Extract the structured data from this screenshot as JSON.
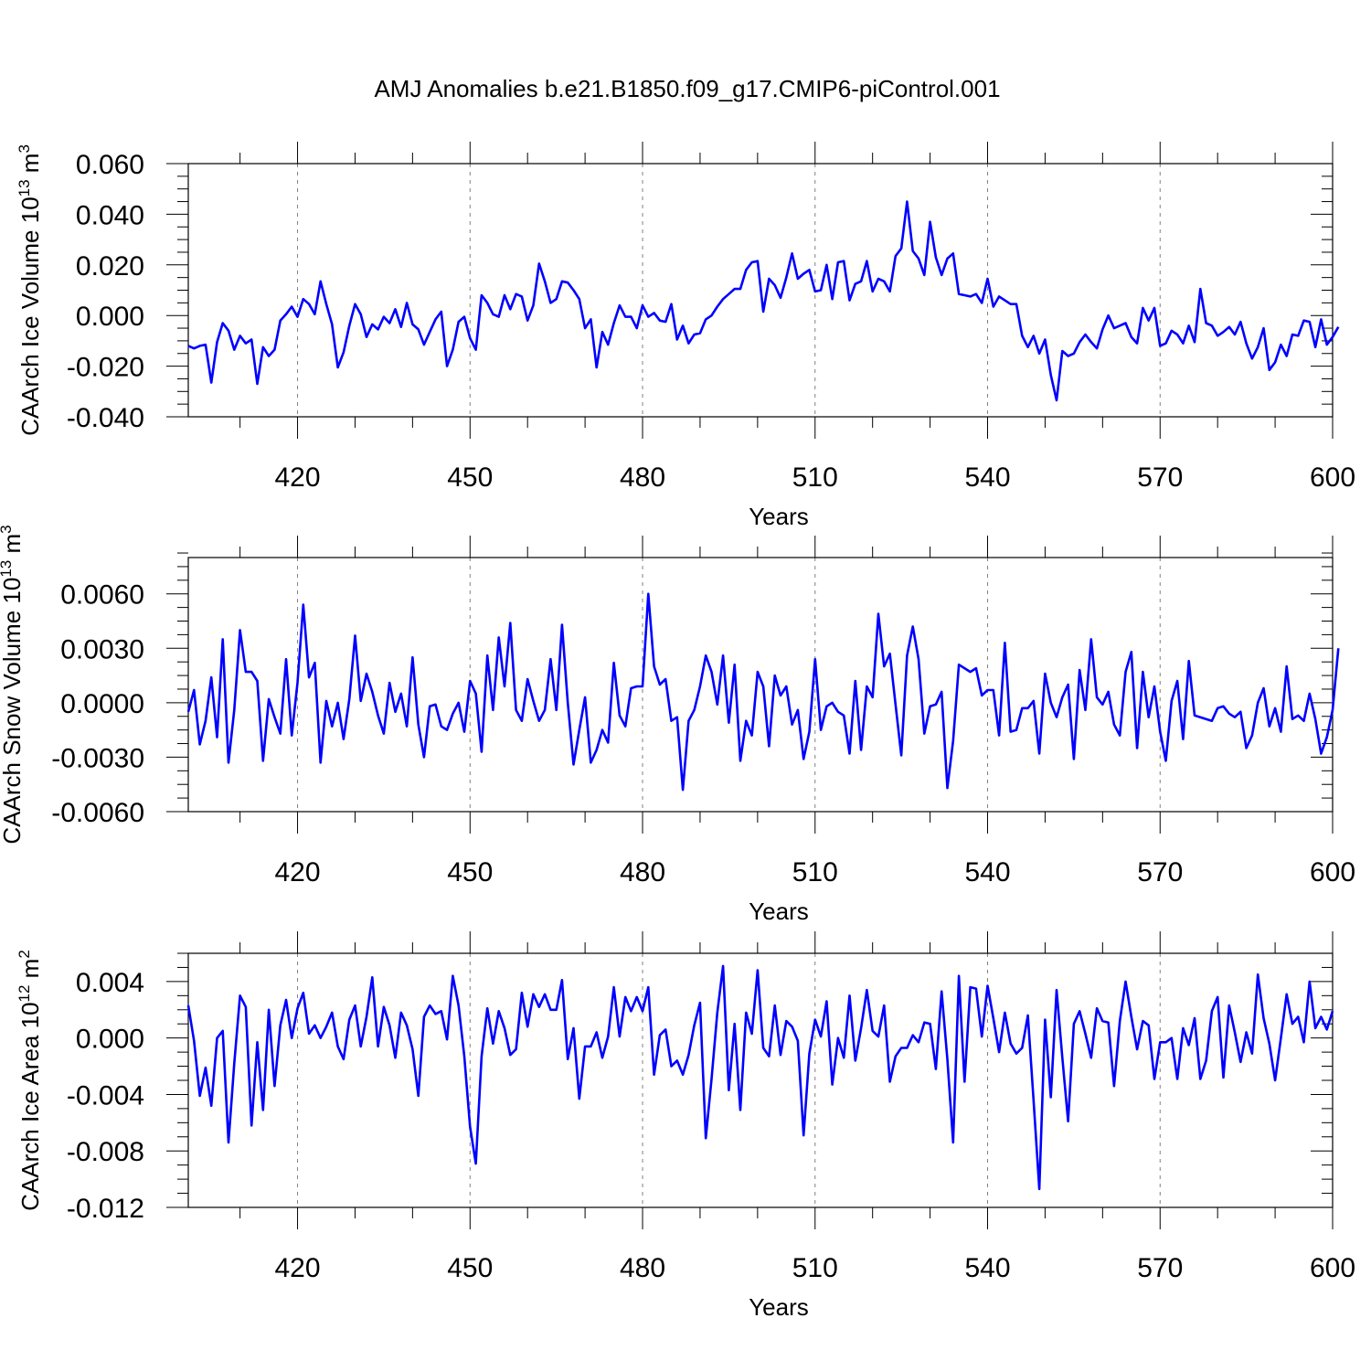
{
  "title": "AMJ Anomalies b.e21.B1850.f09_g17.CMIP6-piControl.001",
  "line_color": "#0000ff",
  "chart_data": [
    {
      "type": "line",
      "ylabel_main": "CAArch Ice Volume 10",
      "ylabel_exp": "13",
      "ylabel_unit": " m",
      "ylabel_unit_exp": "3",
      "xlabel": "Years",
      "xlim": [
        401,
        600
      ],
      "ylim": [
        -0.04,
        0.06
      ],
      "xticks": [
        420,
        450,
        480,
        510,
        540,
        570,
        600
      ],
      "yticks": [
        -0.04,
        -0.02,
        0.0,
        0.02,
        0.04,
        0.06
      ],
      "ytick_labels": [
        "-0.040",
        "-0.020",
        "0.000",
        "0.020",
        "0.040",
        "0.060"
      ],
      "grid": "vertical dashed at major x ticks",
      "series": [
        {
          "x_start": 401,
          "values": [
            -0.012,
            -0.013,
            -0.012,
            -0.0115,
            -0.0265,
            -0.0105,
            -0.003,
            -0.006,
            -0.0135,
            -0.008,
            -0.011,
            -0.0095,
            -0.027,
            -0.0125,
            -0.016,
            -0.0135,
            -0.002,
            0.0005,
            0.0035,
            -0.0005,
            0.0065,
            0.0045,
            0.0005,
            0.0135,
            0.0045,
            -0.0035,
            -0.0205,
            -0.0145,
            -0.004,
            0.0045,
            0.0005,
            -0.0085,
            -0.0035,
            -0.0055,
            -0.0005,
            -0.003,
            0.0025,
            -0.0045,
            0.005,
            -0.0035,
            -0.0055,
            -0.0115,
            -0.0065,
            -0.0015,
            0.0015,
            -0.02,
            -0.0135,
            -0.0025,
            -0.0005,
            -0.009,
            -0.0135,
            0.008,
            0.005,
            0.0005,
            -0.0005,
            0.008,
            0.0025,
            0.0085,
            0.0075,
            -0.002,
            0.004,
            0.0205,
            0.0135,
            0.005,
            0.0065,
            0.0135,
            0.013,
            0.01,
            0.0065,
            -0.005,
            -0.0015,
            -0.0205,
            -0.0065,
            -0.0115,
            -0.003,
            0.004,
            -0.0005,
            -0.0005,
            -0.005,
            0.004,
            -0.0005,
            0.001,
            -0.002,
            -0.0025,
            0.0045,
            -0.0095,
            -0.004,
            -0.011,
            -0.0075,
            -0.007,
            -0.0015,
            0.0,
            0.0035,
            0.0065,
            0.0085,
            0.0105,
            0.0105,
            0.018,
            0.021,
            0.0215,
            0.0015,
            0.0145,
            0.012,
            0.007,
            0.015,
            0.0245,
            0.0145,
            0.0165,
            0.018,
            0.0095,
            0.01,
            0.02,
            0.0065,
            0.021,
            0.0215,
            0.006,
            0.0125,
            0.0135,
            0.0215,
            0.0095,
            0.0145,
            0.0135,
            0.0095,
            0.0235,
            0.0265,
            0.045,
            0.0255,
            0.0225,
            0.016,
            0.037,
            0.023,
            0.016,
            0.0225,
            0.0245,
            0.0085,
            0.008,
            0.0075,
            0.0085,
            0.005,
            0.0145,
            0.0035,
            0.0075,
            0.006,
            0.0045,
            0.0045,
            -0.008,
            -0.0125,
            -0.008,
            -0.015,
            -0.0095,
            -0.0235,
            -0.0335,
            -0.014,
            -0.016,
            -0.015,
            -0.0105,
            -0.0075,
            -0.0105,
            -0.013,
            -0.0055,
            0.0,
            -0.005,
            -0.004,
            -0.003,
            -0.0085,
            -0.011,
            0.003,
            -0.002,
            0.003,
            -0.012,
            -0.011,
            -0.006,
            -0.0075,
            -0.011,
            -0.004,
            -0.0105,
            0.0105,
            -0.003,
            -0.004,
            -0.008,
            -0.0065,
            -0.0045,
            -0.0075,
            -0.0025,
            -0.011,
            -0.017,
            -0.0125,
            -0.005,
            -0.0215,
            -0.0185,
            -0.0115,
            -0.016,
            -0.0075,
            -0.008,
            -0.002,
            -0.0025,
            -0.0125,
            -0.0015,
            -0.0115,
            -0.0085,
            -0.0045
          ]
        }
      ]
    },
    {
      "type": "line",
      "ylabel_main": "CAArch Snow Volume 10",
      "ylabel_exp": "13",
      "ylabel_unit": " m",
      "ylabel_unit_exp": "3",
      "xlabel": "Years",
      "xlim": [
        401,
        600
      ],
      "ylim": [
        -0.006,
        0.008
      ],
      "xticks": [
        420,
        450,
        480,
        510,
        540,
        570,
        600
      ],
      "yticks": [
        -0.006,
        -0.003,
        0.0,
        0.003,
        0.006
      ],
      "ytick_labels": [
        "-0.0060",
        "-0.0030",
        "0.0000",
        "0.0030",
        "0.0060"
      ],
      "grid": "vertical dashed at major x ticks",
      "series": [
        {
          "x_start": 401,
          "values": [
            -0.0005,
            0.0007,
            -0.0023,
            -0.001,
            0.0014,
            -0.0019,
            0.0035,
            -0.0033,
            -0.0004,
            0.004,
            0.0017,
            0.0017,
            0.0012,
            -0.0032,
            0.0002,
            -0.0008,
            -0.0017,
            0.0024,
            -0.0018,
            0.0011,
            0.0054,
            0.0014,
            0.0022,
            -0.0033,
            0.0001,
            -0.0013,
            0.0,
            -0.002,
            0.0002,
            0.0037,
            0.0001,
            0.0016,
            0.0006,
            -0.0007,
            -0.0017,
            0.0011,
            -0.0005,
            0.0005,
            -0.0013,
            0.0025,
            -0.0012,
            -0.003,
            -0.0002,
            -0.0001,
            -0.0013,
            -0.0015,
            -0.0006,
            0.0,
            -0.0016,
            0.0012,
            0.0005,
            -0.0027,
            0.0026,
            -0.0004,
            0.0036,
            0.0009,
            0.0044,
            -0.0004,
            -0.001,
            0.0013,
            0.0001,
            -0.001,
            -0.0004,
            0.0024,
            -0.0004,
            0.0043,
            0.0,
            -0.0034,
            -0.0015,
            0.0003,
            -0.0033,
            -0.0026,
            -0.0015,
            -0.0022,
            0.0022,
            -0.0007,
            -0.0013,
            0.0008,
            0.0009,
            0.0009,
            0.006,
            0.002,
            0.001,
            0.0013,
            -0.001,
            -0.0008,
            -0.0048,
            -0.001,
            -0.0004,
            0.0009,
            0.0026,
            0.0017,
            -0.0001,
            0.0026,
            -0.0011,
            0.0021,
            -0.0032,
            -0.001,
            -0.0018,
            0.0017,
            0.0009,
            -0.0024,
            0.0015,
            0.0004,
            0.0009,
            -0.0012,
            -0.0004,
            -0.0031,
            -0.0016,
            0.0024,
            -0.0015,
            -0.0002,
            0.0,
            -0.0005,
            -0.0007,
            -0.0028,
            0.0012,
            -0.0026,
            0.0009,
            0.0003,
            0.0049,
            0.002,
            0.0027,
            -0.0001,
            -0.0029,
            0.0026,
            0.0042,
            0.0024,
            -0.0017,
            -0.0002,
            -0.0001,
            0.0006,
            -0.0047,
            -0.0021,
            0.0021,
            0.0019,
            0.0017,
            0.0019,
            0.0004,
            0.0007,
            0.0007,
            -0.0018,
            0.0033,
            -0.0016,
            -0.0015,
            -0.0003,
            -0.0003,
            0.0001,
            -0.0028,
            0.0016,
            0.0,
            -0.0008,
            0.0003,
            0.001,
            -0.0031,
            0.0018,
            -0.0004,
            0.0035,
            0.0003,
            -0.0001,
            0.0006,
            -0.0012,
            -0.0018,
            0.0017,
            0.0028,
            -0.0025,
            0.0017,
            -0.0008,
            0.0009,
            -0.0016,
            -0.0032,
            0.0001,
            0.0012,
            -0.002,
            0.0023,
            -0.0007,
            -0.0008,
            -0.0009,
            -0.001,
            -0.0003,
            -0.0002,
            -0.0006,
            -0.0008,
            -0.0005,
            -0.0025,
            -0.0018,
            0.0,
            0.0008,
            -0.0013,
            -0.0003,
            -0.0016,
            0.002,
            -0.0009,
            -0.0007,
            -0.001,
            0.0005,
            -0.0009,
            -0.0028,
            -0.0019,
            -0.0004,
            0.003
          ]
        }
      ]
    },
    {
      "type": "line",
      "ylabel_main": "CAArch Ice Area 10",
      "ylabel_exp": "12",
      "ylabel_unit": " m",
      "ylabel_unit_exp": "2",
      "xlabel": "Years",
      "xlim": [
        401,
        600
      ],
      "ylim": [
        -0.012,
        0.006
      ],
      "xticks": [
        420,
        450,
        480,
        510,
        540,
        570,
        600
      ],
      "yticks": [
        -0.012,
        -0.008,
        -0.004,
        0.0,
        0.004
      ],
      "ytick_labels": [
        "-0.012",
        "-0.008",
        "-0.004",
        "0.000",
        "0.004"
      ],
      "grid": "vertical dashed at major x ticks",
      "series": [
        {
          "x_start": 401,
          "values": [
            0.0023,
            -0.0002,
            -0.0041,
            -0.0021,
            -0.0048,
            0.0,
            0.0005,
            -0.0074,
            -0.0018,
            0.003,
            0.0022,
            -0.0062,
            -0.0003,
            -0.0051,
            0.002,
            -0.0034,
            0.0009,
            0.0027,
            0.0,
            0.0021,
            0.0032,
            0.0003,
            0.0009,
            0.0,
            0.0008,
            0.0018,
            -0.0006,
            -0.0015,
            0.0013,
            0.0023,
            -0.0006,
            0.0015,
            0.0043,
            -0.0006,
            0.0022,
            0.0009,
            -0.0014,
            0.0018,
            0.0009,
            -0.0008,
            -0.0041,
            0.0015,
            0.0023,
            0.0017,
            0.0019,
            -0.0001,
            0.0044,
            0.0023,
            -0.0013,
            -0.0063,
            -0.0089,
            -0.0013,
            0.0021,
            -0.0004,
            0.0019,
            0.0007,
            -0.0012,
            -0.0008,
            0.0032,
            0.0008,
            0.0031,
            0.0022,
            0.0031,
            0.002,
            0.002,
            0.0041,
            -0.0015,
            0.0007,
            -0.0043,
            -0.0006,
            -0.0006,
            0.0004,
            -0.0014,
            0.0001,
            0.0036,
            0.0001,
            0.0029,
            0.0019,
            0.0029,
            0.0019,
            0.0036,
            -0.0026,
            0.0002,
            0.0006,
            -0.002,
            -0.0016,
            -0.0026,
            -0.0012,
            0.0009,
            0.0025,
            -0.0071,
            -0.0029,
            0.0018,
            0.0051,
            -0.0037,
            0.001,
            -0.0051,
            0.0018,
            0.0003,
            0.0048,
            -0.0007,
            -0.0013,
            0.0023,
            -0.0012,
            0.0012,
            0.0008,
            -0.0002,
            -0.0069,
            -0.0011,
            0.0013,
            0.0001,
            0.0026,
            -0.0033,
            0.0,
            -0.0014,
            0.003,
            -0.0016,
            0.0007,
            0.0034,
            0.0005,
            0.0001,
            0.0023,
            -0.0031,
            -0.0013,
            -0.0007,
            -0.0007,
            0.0002,
            -0.0003,
            0.0011,
            0.001,
            -0.0022,
            0.0033,
            -0.0015,
            -0.0074,
            0.0044,
            -0.0031,
            0.0036,
            0.0035,
            0.0001,
            0.0037,
            0.0014,
            -0.001,
            0.0018,
            -0.0004,
            -0.0011,
            -0.0007,
            0.0016,
            -0.0044,
            -0.0107,
            0.0013,
            -0.0042,
            0.0034,
            -0.0014,
            -0.0059,
            0.001,
            0.0019,
            0.0003,
            -0.0014,
            0.0021,
            0.0012,
            0.0011,
            -0.0034,
            0.0012,
            0.004,
            0.0015,
            -0.0008,
            0.0012,
            0.0009,
            -0.0029,
            -0.0003,
            -0.0003,
            0.0,
            -0.0029,
            0.0007,
            -0.0005,
            0.0014,
            -0.0029,
            -0.0016,
            0.0019,
            0.0029,
            -0.0028,
            0.0023,
            0.0004,
            -0.0017,
            0.0004,
            -0.0011,
            0.0045,
            0.0014,
            -0.0004,
            -0.003,
            0.0,
            0.0031,
            0.001,
            0.0015,
            -0.0003,
            0.004,
            0.0007,
            0.0015,
            0.0006,
            0.0019
          ]
        }
      ]
    }
  ]
}
